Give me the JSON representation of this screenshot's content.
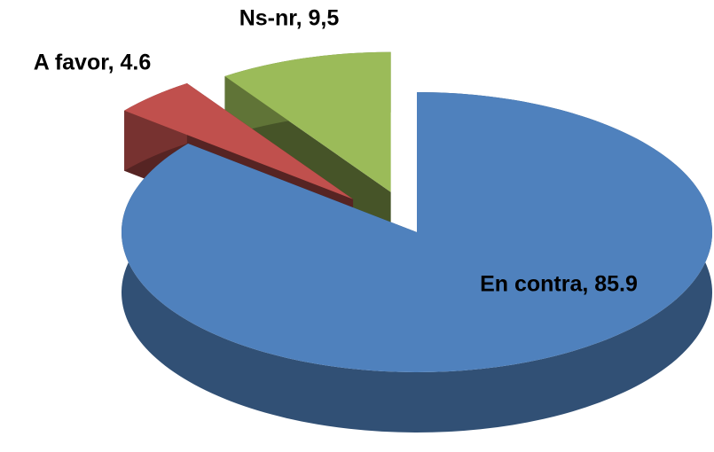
{
  "chart_data": {
    "type": "pie3d",
    "values": [
      85.9,
      4.6,
      9.5
    ],
    "value_labels": [
      "En contra, 85.9",
      "A favor, 4.6",
      "Ns-nr, 9,5"
    ],
    "colors": [
      "#4f81bd",
      "#c0504d",
      "#9bbb59"
    ],
    "explode": [
      0,
      0.32,
      0.3
    ]
  }
}
